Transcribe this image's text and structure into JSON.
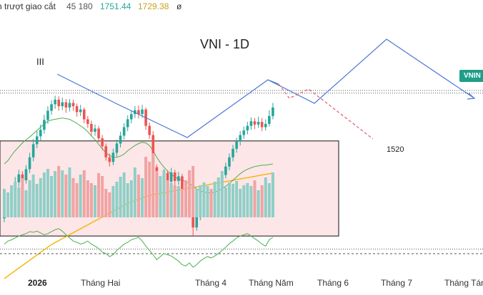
{
  "header": {
    "label": "h trượt giao cắt",
    "volume": "45 180",
    "value_1": "1751.44",
    "value_2": "1729.38",
    "value_3": "ø"
  },
  "colors": {
    "up": "#26a69a",
    "down": "#ef5350",
    "up_volume": "#8fcfc7",
    "down_volume": "#f0a3a3",
    "ma_short": "#4caf50",
    "ma_long": "#f5b400",
    "projection": "#4a78d6",
    "alt_projection": "#e05a6a",
    "zone_fill": "#fde6e8",
    "oscillator": "#4caf50"
  },
  "chart_data": {
    "type": "candlestick",
    "title": "VNI - 1D",
    "symbol_badge": "VNIN",
    "wave_label": "III",
    "level_label": "1520",
    "x_labels": [
      "2026",
      "Tháng Hai",
      "Tháng 4",
      "Tháng Năm",
      "Tháng 6",
      "Tháng 7",
      "Tháng Tám"
    ],
    "ylim": [
      1480,
      1930
    ],
    "candles": [
      [
        1597,
        1606,
        1612,
        1591
      ],
      [
        1606,
        1620,
        1628,
        1600
      ],
      [
        1620,
        1636,
        1643,
        1614
      ],
      [
        1636,
        1652,
        1660,
        1630
      ],
      [
        1652,
        1664,
        1671,
        1645
      ],
      [
        1664,
        1655,
        1669,
        1648
      ],
      [
        1655,
        1672,
        1678,
        1650
      ],
      [
        1672,
        1690,
        1697,
        1666
      ],
      [
        1690,
        1710,
        1718,
        1684
      ],
      [
        1710,
        1722,
        1730,
        1704
      ],
      [
        1722,
        1732,
        1740,
        1716
      ],
      [
        1732,
        1747,
        1755,
        1726
      ],
      [
        1747,
        1761,
        1768,
        1741
      ],
      [
        1761,
        1771,
        1777,
        1755
      ],
      [
        1771,
        1778,
        1784,
        1764
      ],
      [
        1778,
        1768,
        1783,
        1761
      ],
      [
        1768,
        1774,
        1781,
        1762
      ],
      [
        1774,
        1766,
        1779,
        1758
      ],
      [
        1766,
        1773,
        1779,
        1760
      ],
      [
        1773,
        1768,
        1778,
        1761
      ],
      [
        1768,
        1759,
        1772,
        1752
      ],
      [
        1759,
        1763,
        1770,
        1753
      ],
      [
        1763,
        1748,
        1766,
        1742
      ],
      [
        1748,
        1741,
        1753,
        1735
      ],
      [
        1741,
        1729,
        1746,
        1722
      ],
      [
        1729,
        1734,
        1740,
        1723
      ],
      [
        1734,
        1719,
        1738,
        1713
      ],
      [
        1719,
        1707,
        1724,
        1701
      ],
      [
        1707,
        1690,
        1711,
        1685
      ],
      [
        1690,
        1683,
        1696,
        1676
      ],
      [
        1683,
        1697,
        1703,
        1678
      ],
      [
        1697,
        1711,
        1717,
        1691
      ],
      [
        1711,
        1723,
        1729,
        1705
      ],
      [
        1723,
        1736,
        1742,
        1717
      ],
      [
        1736,
        1748,
        1754,
        1730
      ],
      [
        1748,
        1756,
        1762,
        1742
      ],
      [
        1756,
        1762,
        1768,
        1750
      ],
      [
        1762,
        1756,
        1769,
        1749
      ],
      [
        1756,
        1763,
        1770,
        1750
      ],
      [
        1763,
        1738,
        1766,
        1732
      ],
      [
        1738,
        1724,
        1743,
        1718
      ],
      [
        1724,
        1675,
        1730,
        1663
      ],
      [
        1675,
        1614,
        1679,
        1606
      ],
      [
        1614,
        1649,
        1655,
        1609
      ],
      [
        1649,
        1666,
        1672,
        1641
      ],
      [
        1666,
        1653,
        1670,
        1645
      ],
      [
        1653,
        1667,
        1674,
        1647
      ],
      [
        1667,
        1654,
        1671,
        1646
      ],
      [
        1654,
        1661,
        1668,
        1648
      ],
      [
        1661,
        1641,
        1665,
        1634
      ],
      [
        1641,
        1624,
        1646,
        1617
      ],
      [
        1624,
        1604,
        1628,
        1598
      ],
      [
        1604,
        1583,
        1608,
        1570
      ],
      [
        1583,
        1600,
        1606,
        1578
      ],
      [
        1600,
        1612,
        1618,
        1594
      ],
      [
        1612,
        1623,
        1629,
        1607
      ],
      [
        1623,
        1634,
        1640,
        1618
      ],
      [
        1634,
        1626,
        1639,
        1619
      ],
      [
        1626,
        1638,
        1644,
        1620
      ],
      [
        1638,
        1644,
        1650,
        1630
      ],
      [
        1644,
        1663,
        1669,
        1639
      ],
      [
        1663,
        1676,
        1682,
        1658
      ],
      [
        1676,
        1690,
        1696,
        1670
      ],
      [
        1690,
        1703,
        1709,
        1684
      ],
      [
        1703,
        1714,
        1720,
        1697
      ],
      [
        1714,
        1724,
        1730,
        1708
      ],
      [
        1724,
        1731,
        1737,
        1718
      ],
      [
        1731,
        1738,
        1744,
        1725
      ],
      [
        1738,
        1745,
        1751,
        1732
      ],
      [
        1745,
        1740,
        1750,
        1733
      ],
      [
        1740,
        1744,
        1752,
        1735
      ],
      [
        1744,
        1736,
        1750,
        1730
      ],
      [
        1736,
        1741,
        1748,
        1731
      ],
      [
        1741,
        1753,
        1762,
        1737
      ],
      [
        1753,
        1766,
        1773,
        1748
      ]
    ],
    "volumes": [
      40,
      35,
      45,
      50,
      42,
      55,
      38,
      52,
      60,
      47,
      55,
      63,
      68,
      58,
      65,
      72,
      66,
      60,
      70,
      55,
      48,
      60,
      66,
      52,
      48,
      45,
      62,
      58,
      40,
      35,
      44,
      50,
      57,
      63,
      48,
      52,
      70,
      60,
      55,
      85,
      78,
      90,
      65,
      58,
      66,
      52,
      48,
      45,
      44,
      40,
      52,
      66,
      72,
      40,
      45,
      49,
      44,
      40,
      50,
      56,
      65,
      42,
      49,
      47,
      51,
      40,
      45,
      48,
      44,
      52,
      38,
      45,
      56,
      48,
      63
    ],
    "ma_short": [
      1680,
      1685,
      1693,
      1700,
      1706,
      1712,
      1717,
      1721,
      1726,
      1731,
      1736,
      1741,
      1745,
      1747,
      1748,
      1749,
      1750,
      1749,
      1748,
      1745,
      1742,
      1738,
      1734,
      1729,
      1723,
      1717,
      1710,
      1703,
      1697,
      1693,
      1690,
      1690,
      1692,
      1695,
      1700,
      1704,
      1708,
      1711,
      1713,
      1712,
      1708,
      1700,
      1690,
      1682,
      1675,
      1669,
      1664,
      1660,
      1657,
      1655,
      1653,
      1650,
      1646,
      1642,
      1639,
      1637,
      1636,
      1636,
      1637,
      1639,
      1642,
      1646,
      1650,
      1655,
      1660,
      1665,
      1669,
      1672,
      1674,
      1676,
      1677,
      1678,
      1678,
      1679,
      1680
    ],
    "ma_long": [
      1505,
      1509,
      1513,
      1517,
      1521,
      1525,
      1529,
      1533,
      1537,
      1541,
      1545,
      1549,
      1553,
      1557,
      1560,
      1563,
      1566,
      1569,
      1572,
      1575,
      1578,
      1581,
      1584,
      1587,
      1590,
      1593,
      1596,
      1599,
      1602,
      1605,
      1608,
      1611,
      1614,
      1617,
      1620,
      1622,
      1624,
      1626,
      1628,
      1630,
      1632,
      1633,
      1634,
      1635,
      1636,
      1637,
      1638,
      1639,
      1640,
      1641,
      1642,
      1643,
      1644,
      1645,
      1646,
      1647,
      1648,
      1649,
      1650,
      1651,
      1652,
      1653,
      1654,
      1655,
      1656,
      1657,
      1658,
      1659,
      1660,
      1661,
      1662,
      1663,
      1664,
      1665,
      1666
    ],
    "oscillator": [
      55,
      60,
      62,
      65,
      68,
      70,
      72,
      75,
      74,
      76,
      73,
      70,
      72,
      75,
      78,
      80,
      76,
      70,
      65,
      60,
      58,
      55,
      57,
      60,
      55,
      52,
      48,
      42,
      40,
      35,
      38,
      45,
      50,
      55,
      58,
      62,
      64,
      66,
      60,
      52,
      45,
      38,
      30,
      35,
      40,
      38,
      36,
      32,
      28,
      22,
      20,
      25,
      18,
      22,
      28,
      32,
      35,
      33,
      36,
      40,
      45,
      50,
      56,
      60,
      65,
      68,
      70,
      72,
      68,
      64,
      60,
      55,
      52,
      62,
      66
    ],
    "osc_range": [
      10,
      90
    ],
    "osc_midline": 50,
    "zone_top": 1715,
    "zone_bottom": 1570,
    "upper_dotted_levels": [
      1792,
      1788
    ],
    "lower_dotted_level": 1550
  }
}
